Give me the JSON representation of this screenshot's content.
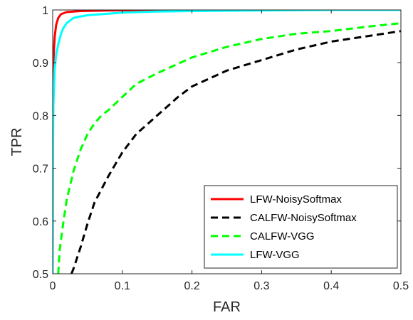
{
  "chart_data": {
    "type": "line",
    "title": "",
    "xlabel": "FAR",
    "ylabel": "TPR",
    "xlim": [
      0,
      0.5
    ],
    "ylim": [
      0.5,
      1
    ],
    "grid": false,
    "legend_position": "bottom-right",
    "xticks": [
      {
        "value": 0,
        "label": "0"
      },
      {
        "value": 0.1,
        "label": "0.1"
      },
      {
        "value": 0.2,
        "label": "0.2"
      },
      {
        "value": 0.3,
        "label": "0.3"
      },
      {
        "value": 0.4,
        "label": "0.4"
      },
      {
        "value": 0.5,
        "label": "0.5"
      }
    ],
    "yticks": [
      {
        "value": 0.5,
        "label": "0.5"
      },
      {
        "value": 0.6,
        "label": "0.6"
      },
      {
        "value": 0.7,
        "label": "0.7"
      },
      {
        "value": 0.8,
        "label": "0.8"
      },
      {
        "value": 0.9,
        "label": "0.9"
      },
      {
        "value": 1,
        "label": "1"
      }
    ],
    "series": [
      {
        "name": "LFW-NoisySoftmax",
        "color": "#ff0000",
        "dash": "solid",
        "x": [
          0,
          0.0005,
          0.001,
          0.002,
          0.003,
          0.005,
          0.008,
          0.012,
          0.02,
          0.04,
          0.08,
          0.15,
          0.3,
          0.5
        ],
        "y": [
          0.5,
          0.86,
          0.9,
          0.93,
          0.95,
          0.972,
          0.985,
          0.992,
          0.996,
          0.998,
          0.999,
          1,
          1,
          1
        ]
      },
      {
        "name": "CALFW-NoisySoftmax",
        "color": "#000000",
        "dash": "dashed",
        "x": [
          0.027,
          0.03,
          0.04,
          0.05,
          0.06,
          0.08,
          0.1,
          0.12,
          0.15,
          0.18,
          0.2,
          0.25,
          0.3,
          0.35,
          0.4,
          0.45,
          0.5
        ],
        "y": [
          0.5,
          0.51,
          0.55,
          0.595,
          0.635,
          0.685,
          0.73,
          0.765,
          0.8,
          0.835,
          0.855,
          0.885,
          0.905,
          0.925,
          0.94,
          0.95,
          0.96
        ]
      },
      {
        "name": "CALFW-VGG",
        "color": "#00ff00",
        "dash": "dashed",
        "x": [
          0.008,
          0.01,
          0.015,
          0.02,
          0.03,
          0.04,
          0.05,
          0.06,
          0.07,
          0.08,
          0.1,
          0.12,
          0.15,
          0.2,
          0.25,
          0.3,
          0.35,
          0.4,
          0.45,
          0.5
        ],
        "y": [
          0.5,
          0.545,
          0.595,
          0.64,
          0.695,
          0.735,
          0.765,
          0.785,
          0.8,
          0.81,
          0.835,
          0.86,
          0.88,
          0.91,
          0.93,
          0.945,
          0.955,
          0.96,
          0.968,
          0.975
        ]
      },
      {
        "name": "LFW-VGG",
        "color": "#00ffff",
        "dash": "solid",
        "x": [
          0,
          0.0005,
          0.001,
          0.002,
          0.003,
          0.005,
          0.008,
          0.01,
          0.012,
          0.015,
          0.02,
          0.03,
          0.05,
          0.08,
          0.1,
          0.15,
          0.2,
          0.3,
          0.4,
          0.5
        ],
        "y": [
          0.5,
          0.75,
          0.82,
          0.86,
          0.89,
          0.915,
          0.935,
          0.945,
          0.955,
          0.965,
          0.975,
          0.985,
          0.99,
          0.993,
          0.995,
          0.997,
          0.998,
          0.999,
          1,
          1
        ]
      }
    ]
  }
}
